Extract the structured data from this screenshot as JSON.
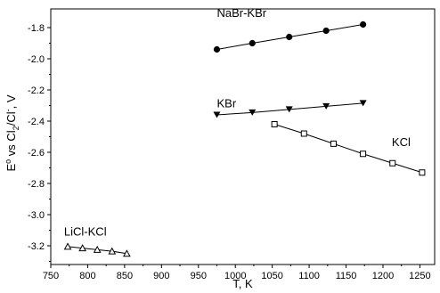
{
  "chart_data": {
    "type": "scatter",
    "title": "",
    "xlabel": "T, K",
    "ylabel_parts": {
      "base": "E",
      "sup": "o",
      "mid": " vs Cl",
      "sub": "2",
      "tail": "/Cl",
      "sup2": "-",
      "end": ", V"
    },
    "xlim": [
      750,
      1270
    ],
    "ylim": [
      -3.32,
      -1.68
    ],
    "x_ticks": [
      750,
      800,
      850,
      900,
      950,
      1000,
      1050,
      1100,
      1150,
      1200,
      1250
    ],
    "y_ticks": [
      -1.8,
      -2.0,
      -2.2,
      -2.4,
      -2.6,
      -2.8,
      -3.0,
      -3.2
    ],
    "y_tick_labels": [
      "-1.8",
      "-2.0",
      "-2.2",
      "-2.4",
      "-2.6",
      "-2.8",
      "-3.0",
      "-3.2"
    ],
    "grid": false,
    "series": [
      {
        "name": "NaBr-KBr",
        "marker": "circle-filled",
        "label_at": [
          975,
          -1.73
        ],
        "x": [
          975,
          1023,
          1073,
          1123,
          1173
        ],
        "y": [
          -1.94,
          -1.9,
          -1.86,
          -1.82,
          -1.78
        ]
      },
      {
        "name": "KBr",
        "marker": "triangle-down-filled",
        "label_at": [
          975,
          -2.31
        ],
        "x": [
          975,
          1023,
          1073,
          1123,
          1173
        ],
        "y": [
          -2.36,
          -2.345,
          -2.325,
          -2.305,
          -2.285
        ]
      },
      {
        "name": "KCl",
        "marker": "square-open",
        "label_at": [
          1212,
          -2.56
        ],
        "x": [
          1053,
          1093,
          1133,
          1173,
          1213,
          1253
        ],
        "y": [
          -2.42,
          -2.48,
          -2.545,
          -2.61,
          -2.67,
          -2.73
        ]
      },
      {
        "name": "LiCl-KCl",
        "marker": "triangle-up-open",
        "label_at": [
          768,
          -3.135
        ],
        "x": [
          773,
          793,
          813,
          833,
          853
        ],
        "y": [
          -3.205,
          -3.215,
          -3.225,
          -3.235,
          -3.25
        ]
      }
    ]
  }
}
